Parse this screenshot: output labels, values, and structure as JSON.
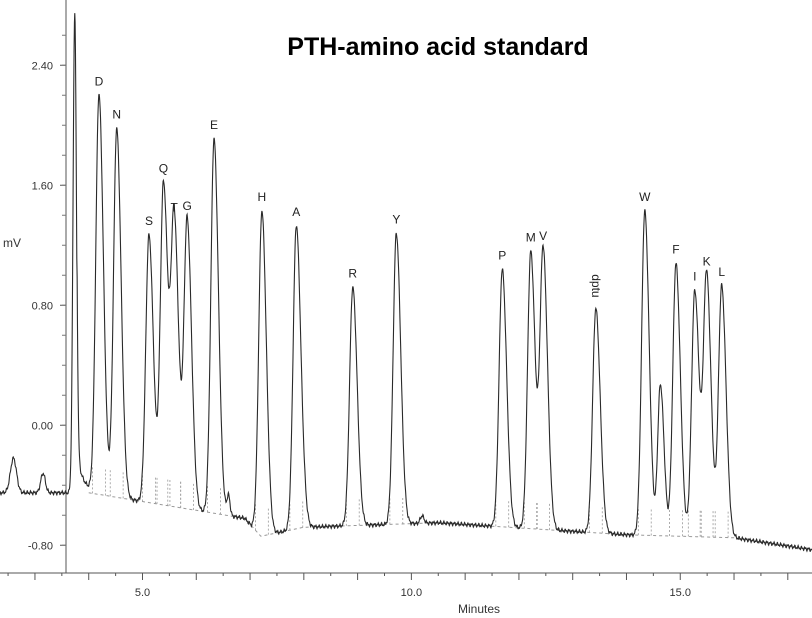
{
  "chart_data": {
    "type": "line",
    "title": "PTH-amino acid standard",
    "xlabel": "Minutes",
    "ylabel": "mV",
    "xlim": [
      2.35,
      17.45
    ],
    "ylim": [
      -0.985,
      2.835
    ],
    "x_ticks": [
      "5.0",
      "10.0",
      "15.0"
    ],
    "y_ticks": [
      "2.40",
      "1.60",
      "0.80",
      "0.00",
      "-0.80"
    ],
    "x_tick_values": [
      5.0,
      10.0,
      15.0
    ],
    "y_tick_values": [
      2.4,
      1.6,
      0.8,
      0.0,
      -0.8
    ],
    "line_color": "#2a2a2a",
    "baseline_color": "#999999",
    "peaks": [
      {
        "label": "D",
        "x": 4.19,
        "y": 2.2
      },
      {
        "label": "N",
        "x": 4.52,
        "y": 1.98
      },
      {
        "label": "S",
        "x": 5.12,
        "y": 1.27
      },
      {
        "label": "Q",
        "x": 5.39,
        "y": 1.62
      },
      {
        "label": "T",
        "x": 5.59,
        "y": 1.36
      },
      {
        "label": "G",
        "x": 5.83,
        "y": 1.37
      },
      {
        "label": "E",
        "x": 6.33,
        "y": 1.91
      },
      {
        "label": "H",
        "x": 7.22,
        "y": 1.43
      },
      {
        "label": "A",
        "x": 7.86,
        "y": 1.33
      },
      {
        "label": "R",
        "x": 8.91,
        "y": 0.92
      },
      {
        "label": "Y",
        "x": 9.72,
        "y": 1.28
      },
      {
        "label": "P",
        "x": 11.69,
        "y": 1.04
      },
      {
        "label": "M",
        "x": 12.22,
        "y": 1.16
      },
      {
        "label": "V",
        "x": 12.45,
        "y": 1.17
      },
      {
        "label": "dptu",
        "x": 13.43,
        "y": 0.78
      },
      {
        "label": "W",
        "x": 14.34,
        "y": 1.43
      },
      {
        "label": "F",
        "x": 14.92,
        "y": 1.08
      },
      {
        "label": "I",
        "x": 15.27,
        "y": 0.9
      },
      {
        "label": "K",
        "x": 15.49,
        "y": 1.0
      },
      {
        "label": "L",
        "x": 15.77,
        "y": 0.93
      }
    ]
  }
}
